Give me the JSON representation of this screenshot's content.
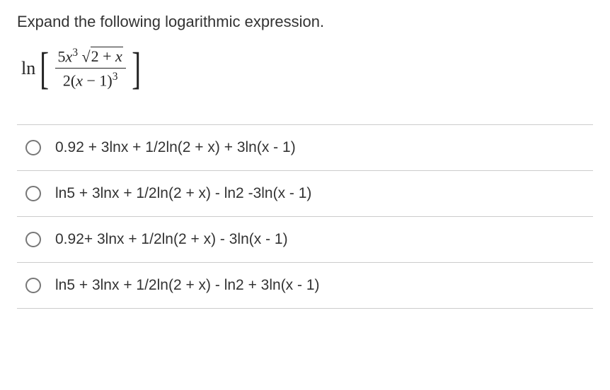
{
  "question_text": "Expand the following logarithmic expression.",
  "math": {
    "ln_label": "ln",
    "numerator_html": "5<i>x</i><span class='sup'>3</span>&nbsp;&radic;<span class='surd-bar'>2 + <i>x</i></span>",
    "denominator_html": "2(<i>x</i> &minus; 1)<span class='sup'>3</span>"
  },
  "options": [
    {
      "text": "0.92 + 3lnx + 1/2ln(2 + x) + 3ln(x - 1)"
    },
    {
      "text": "ln5 + 3lnx + 1/2ln(2 + x) - ln2 -3ln(x - 1)"
    },
    {
      "text": "0.92+ 3lnx + 1/2ln(2 + x) - 3ln(x - 1)"
    },
    {
      "text": "ln5 + 3lnx + 1/2ln(2 + x) - ln2 + 3ln(x - 1)"
    }
  ],
  "colors": {
    "text": "#333333",
    "divider": "#cccccc",
    "bg": "#ffffff"
  }
}
